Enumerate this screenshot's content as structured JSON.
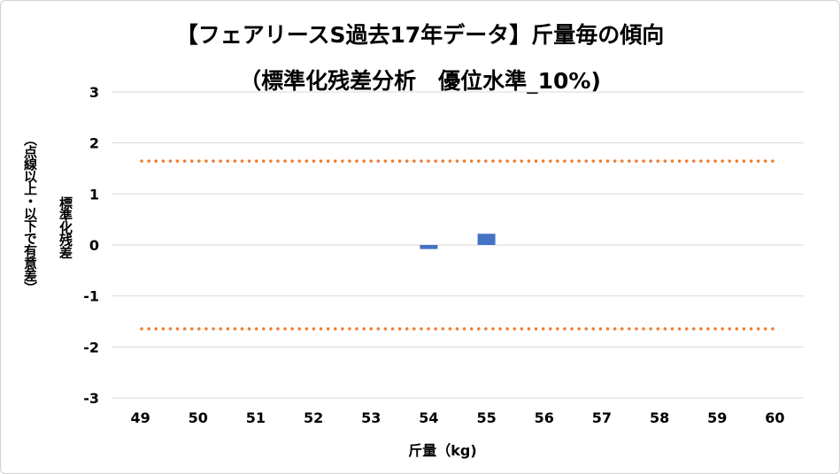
{
  "chart_data": {
    "type": "bar",
    "title": "【フェアリースS過去17年データ】斤量毎の傾向",
    "subtitle": "（標準化残差分析　優位水準_10%)",
    "ylabel_main": "標準化残差",
    "ylabel_sub": "（点線以上・以下で有意差）",
    "xlabel": "斤量（kg)",
    "categories": [
      "49",
      "50",
      "51",
      "52",
      "53",
      "54",
      "55",
      "56",
      "57",
      "58",
      "59",
      "60"
    ],
    "values": [
      null,
      null,
      null,
      null,
      null,
      -0.08,
      0.22,
      null,
      null,
      null,
      null,
      null
    ],
    "ylim": [
      -3,
      3
    ],
    "yticks": [
      "3",
      "2",
      "1",
      "0",
      "-1",
      "-2",
      "-3"
    ],
    "threshold_upper": 1.645,
    "threshold_lower": -1.645,
    "bar_color": "#4472C4",
    "threshold_color": "#ED7D31",
    "grid": true
  }
}
